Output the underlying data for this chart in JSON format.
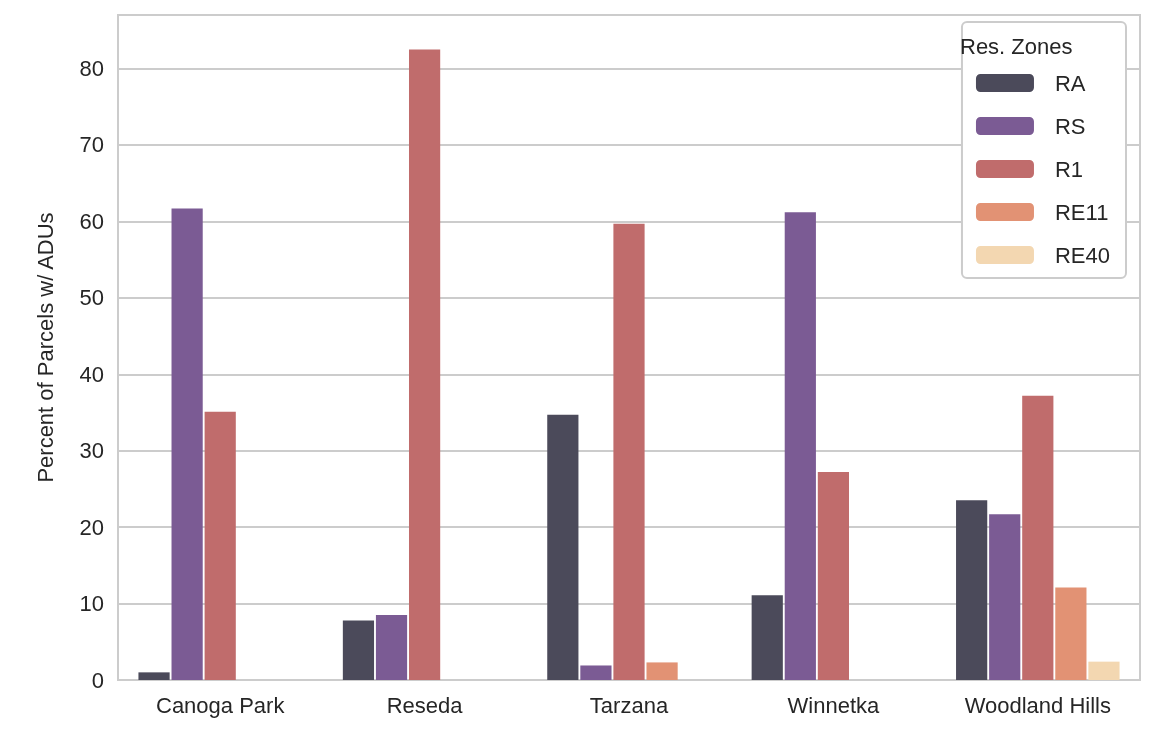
{
  "chart_data": {
    "type": "bar",
    "ylabel": "Percent of Parcels w/ ADUs",
    "legend_title": "Res. Zones",
    "categories": [
      "Canoga Park",
      "Reseda",
      "Tarzana",
      "Winnetka",
      "Woodland Hills"
    ],
    "series": [
      {
        "name": "RA",
        "color": "#4b4a5a",
        "values": [
          1.0,
          7.8,
          34.7,
          11.1,
          23.5
        ]
      },
      {
        "name": "RS",
        "color": "#7b5b94",
        "values": [
          61.7,
          8.5,
          1.9,
          61.2,
          21.7
        ]
      },
      {
        "name": "R1",
        "color": "#c06c6c",
        "values": [
          35.1,
          82.5,
          59.7,
          27.2,
          37.2
        ]
      },
      {
        "name": "RE11",
        "color": "#e29274",
        "values": [
          null,
          null,
          2.3,
          null,
          12.1
        ]
      },
      {
        "name": "RE40",
        "color": "#f3d7b1",
        "values": [
          null,
          null,
          null,
          null,
          2.4
        ]
      }
    ],
    "ylim": [
      0,
      87
    ],
    "yticks": [
      0,
      10,
      20,
      30,
      40,
      50,
      60,
      70,
      80
    ],
    "grid": "y",
    "legend": "top right"
  }
}
